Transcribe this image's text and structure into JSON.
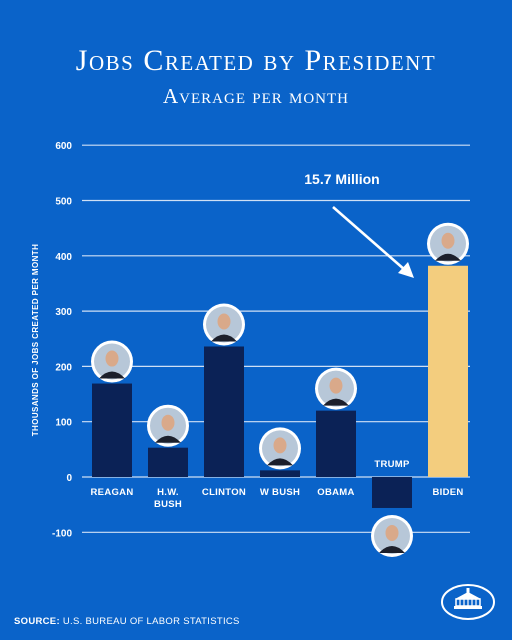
{
  "header": {
    "title": "Jobs Created by President",
    "subtitle": "Average per month"
  },
  "chart_data": {
    "type": "bar",
    "ylabel": "THOUSANDS OF JOBS CREATED PER MONTH",
    "ylim": [
      -100,
      600
    ],
    "yticks": [
      600,
      500,
      400,
      300,
      200,
      100,
      0,
      -100
    ],
    "grid": true,
    "categories": [
      "REAGAN",
      "H.W. BUSH",
      "CLINTON",
      "W BUSH",
      "OBAMA",
      "TRUMP",
      "BIDEN"
    ],
    "label_lines": [
      [
        "REAGAN"
      ],
      [
        "H.W.",
        "BUSH"
      ],
      [
        "CLINTON"
      ],
      [
        "W BUSH"
      ],
      [
        "OBAMA"
      ],
      [
        "TRUMP"
      ],
      [
        "BIDEN"
      ]
    ],
    "values": [
      169,
      53,
      236,
      12,
      120,
      -56,
      382
    ],
    "bar_colors": [
      "#0b2256",
      "#0b2256",
      "#0b2256",
      "#0b2256",
      "#0b2256",
      "#0b2256",
      "#f3cd7e"
    ],
    "annotation": "15.7 Million"
  },
  "footer": {
    "source_label": "SOURCE:",
    "source_text": "U.S. BUREAU OF LABOR STATISTICS",
    "logo_icon": "white-house-icon"
  },
  "colors": {
    "background": "#0a63c9",
    "bar": "#0b2256",
    "highlight_bar": "#f3cd7e",
    "grid": "#cfe0f5",
    "text": "#ffffff"
  }
}
